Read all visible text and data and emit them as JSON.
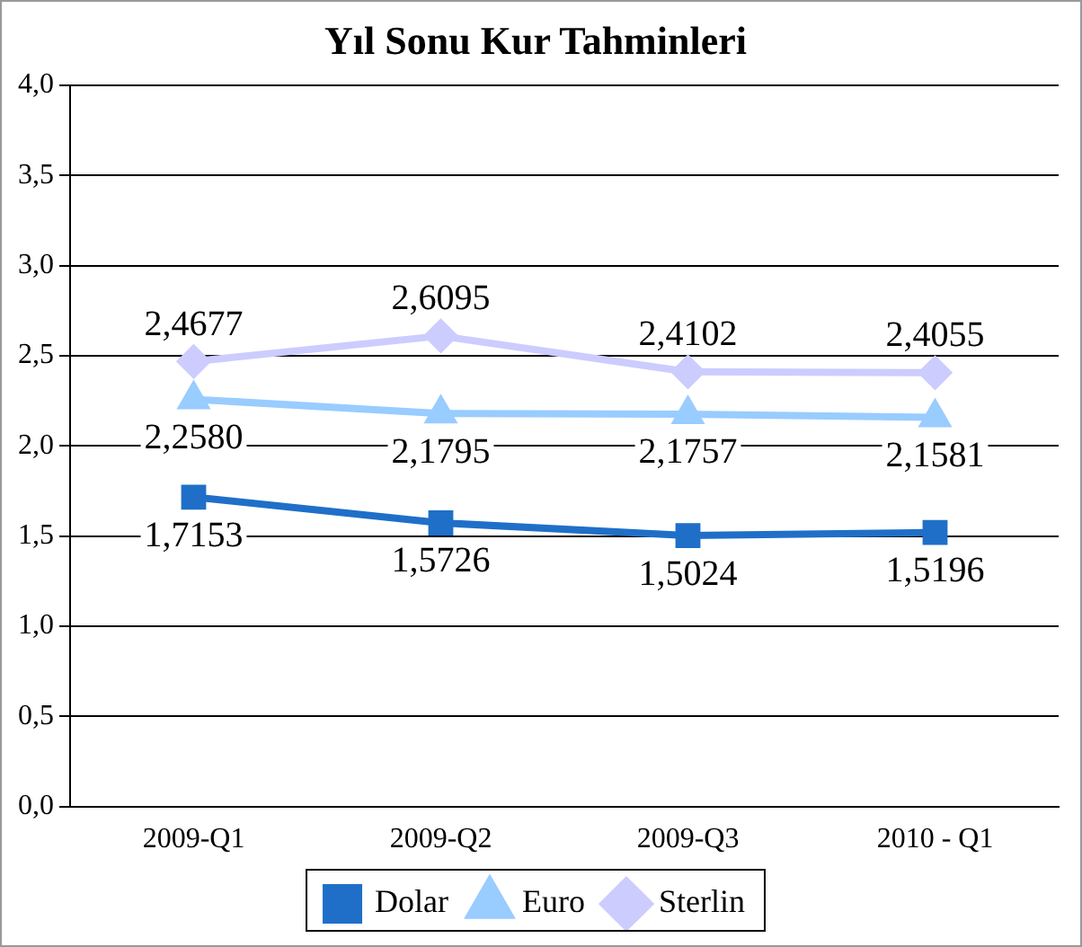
{
  "chart_data": {
    "type": "line",
    "title": "Yıl Sonu Kur Tahminleri",
    "categories": [
      "2009-Q1",
      "2009-Q2",
      "2009-Q3",
      "2010 - Q1"
    ],
    "series": [
      {
        "name": "Dolar",
        "color": "#1f6fc8",
        "marker": "square",
        "values": [
          1.7153,
          1.5726,
          1.5024,
          1.5196
        ],
        "value_labels": [
          "1,7153",
          "1,5726",
          "1,5024",
          "1,5196"
        ]
      },
      {
        "name": "Euro",
        "color": "#99ccff",
        "marker": "triangle",
        "values": [
          2.258,
          2.1795,
          2.1757,
          2.1581
        ],
        "value_labels": [
          "2,2580",
          "2,1795",
          "2,1757",
          "2,1581"
        ]
      },
      {
        "name": "Sterlin",
        "color": "#ccccff",
        "marker": "diamond",
        "values": [
          2.4677,
          2.6095,
          2.4102,
          2.4055
        ],
        "value_labels": [
          "2,4677",
          "2,6095",
          "2,4102",
          "2,4055"
        ]
      }
    ],
    "ylim": [
      0,
      4
    ],
    "yticks": [
      {
        "value": 0,
        "label": "0,0"
      },
      {
        "value": 0.5,
        "label": "0,5"
      },
      {
        "value": 1,
        "label": "1,0"
      },
      {
        "value": 1.5,
        "label": "1,5"
      },
      {
        "value": 2,
        "label": "2,0"
      },
      {
        "value": 2.5,
        "label": "2,5"
      },
      {
        "value": 3,
        "label": "3,0"
      },
      {
        "value": 3.5,
        "label": "3,5"
      },
      {
        "value": 4,
        "label": "4,0"
      }
    ],
    "grid": "y",
    "legend": "bottom",
    "line_style": "solid"
  }
}
